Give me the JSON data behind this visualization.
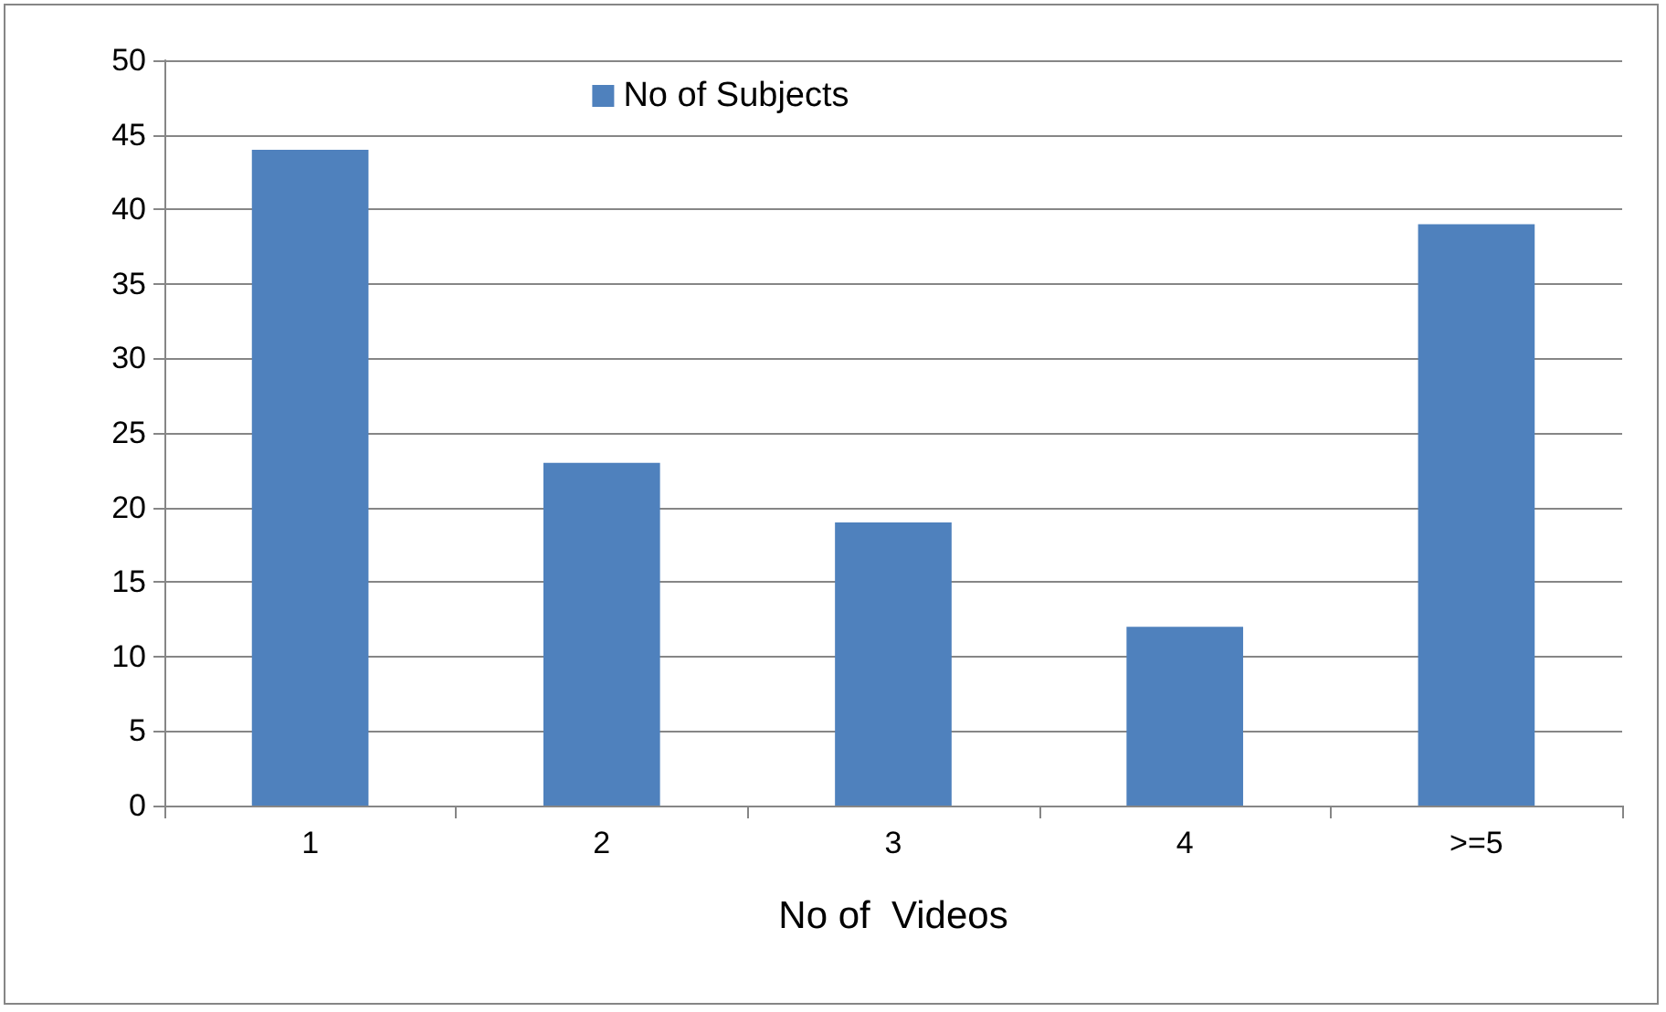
{
  "chart_data": {
    "type": "bar",
    "xlabel": "No of  Videos",
    "categories": [
      "1",
      "2",
      "3",
      "4",
      ">=5"
    ],
    "series": [
      {
        "name": "No of Subjects",
        "color": "#4f81bd",
        "values": [
          44,
          23,
          19,
          12,
          39
        ]
      }
    ],
    "ylim": [
      0,
      50
    ],
    "yticks": [
      0,
      5,
      10,
      15,
      20,
      25,
      30,
      35,
      40,
      45,
      50
    ],
    "grid": "y",
    "legend": "top"
  }
}
